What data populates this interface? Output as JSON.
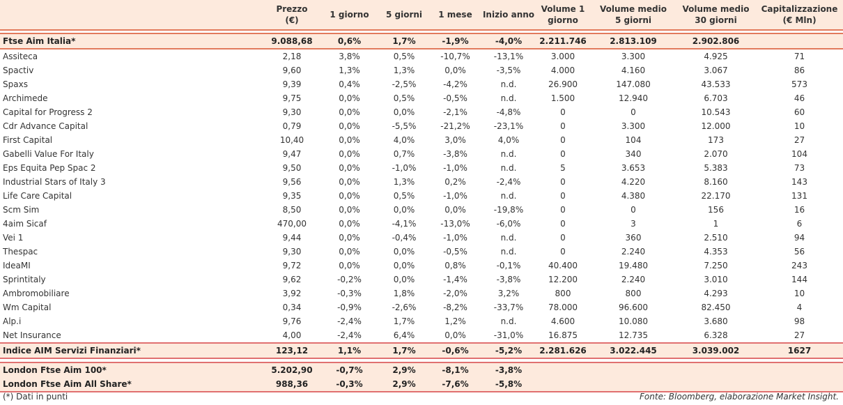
{
  "headers": [
    "",
    "Prezzo\n(€)",
    "1 giorno",
    "5 giorni",
    "1 mese",
    "Inizio anno",
    "Volume 1\ngiorno",
    "Volume medio\n5 giorni",
    "Volume medio\n30 giorni",
    "Capitalizzazione\n(€ Mln)"
  ],
  "index_row": [
    "Ftse Aim Italia*",
    "9.088,68",
    "0,6%",
    "1,7%",
    "-1,9%",
    "-4,0%",
    "2.211.746",
    "2.813.109",
    "2.902.806",
    ""
  ],
  "rows": [
    [
      "Assiteca",
      "2,18",
      "3,8%",
      "0,5%",
      "-10,7%",
      "-13,1%",
      "3.000",
      "3.300",
      "4.925",
      "71"
    ],
    [
      "Spactiv",
      "9,60",
      "1,3%",
      "1,3%",
      "0,0%",
      "-3,5%",
      "4.000",
      "4.160",
      "3.067",
      "86"
    ],
    [
      "Spaxs",
      "9,39",
      "0,4%",
      "-2,5%",
      "-4,2%",
      "n.d.",
      "26.900",
      "147.080",
      "43.533",
      "573"
    ],
    [
      "Archimede",
      "9,75",
      "0,0%",
      "0,5%",
      "-0,5%",
      "n.d.",
      "1.500",
      "12.940",
      "6.703",
      "46"
    ],
    [
      "Capital for Progress 2",
      "9,30",
      "0,0%",
      "0,0%",
      "-2,1%",
      "-4,8%",
      "0",
      "0",
      "10.543",
      "60"
    ],
    [
      "Cdr Advance Capital",
      "0,79",
      "0,0%",
      "-5,5%",
      "-21,2%",
      "-23,1%",
      "0",
      "3.300",
      "12.000",
      "10"
    ],
    [
      "First Capital",
      "10,40",
      "0,0%",
      "4,0%",
      "3,0%",
      "4,0%",
      "0",
      "104",
      "173",
      "27"
    ],
    [
      "Gabelli Value For Italy",
      "9,47",
      "0,0%",
      "0,7%",
      "-3,8%",
      "n.d.",
      "0",
      "340",
      "2.070",
      "104"
    ],
    [
      "Eps Equita Pep Spac 2",
      "9,50",
      "0,0%",
      "-1,0%",
      "-1,0%",
      "n.d.",
      "5",
      "3.653",
      "5.383",
      "73"
    ],
    [
      "Industrial Stars of Italy 3",
      "9,56",
      "0,0%",
      "1,3%",
      "0,2%",
      "-2,4%",
      "0",
      "4.220",
      "8.160",
      "143"
    ],
    [
      "Life Care Capital",
      "9,35",
      "0,0%",
      "0,5%",
      "-1,0%",
      "n.d.",
      "0",
      "4.380",
      "22.170",
      "131"
    ],
    [
      "Scm Sim",
      "8,50",
      "0,0%",
      "0,0%",
      "0,0%",
      "-19,8%",
      "0",
      "0",
      "156",
      "16"
    ],
    [
      "4aim Sicaf",
      "470,00",
      "0,0%",
      "-4,1%",
      "-13,0%",
      "-6,0%",
      "0",
      "3",
      "1",
      "6"
    ],
    [
      "Vei 1",
      "9,44",
      "0,0%",
      "-0,4%",
      "-1,0%",
      "n.d.",
      "0",
      "360",
      "2.510",
      "94"
    ],
    [
      "Thespac",
      "9,30",
      "0,0%",
      "0,0%",
      "-0,5%",
      "n.d.",
      "0",
      "2.240",
      "4.353",
      "56"
    ],
    [
      "IdeaMI",
      "9,72",
      "0,0%",
      "0,0%",
      "0,8%",
      "-0,1%",
      "40.400",
      "19.480",
      "7.250",
      "243"
    ],
    [
      "Sprintitaly",
      "9,62",
      "-0,2%",
      "0,0%",
      "-1,4%",
      "-3,8%",
      "12.200",
      "2.240",
      "3.010",
      "144"
    ],
    [
      "Ambromobiliare",
      "3,92",
      "-0,3%",
      "1,8%",
      "-2,0%",
      "3,2%",
      "800",
      "800",
      "4.293",
      "10"
    ],
    [
      "Wm Capital",
      "0,34",
      "-0,9%",
      "-2,6%",
      "-8,2%",
      "-33,7%",
      "78.000",
      "96.600",
      "82.450",
      "4"
    ],
    [
      "Alp.i",
      "9,76",
      "-2,4%",
      "1,7%",
      "1,2%",
      "n.d.",
      "4.600",
      "10.080",
      "3.680",
      "98"
    ],
    [
      "Net Insurance",
      "4,00",
      "-2,4%",
      "6,4%",
      "0,0%",
      "-31,0%",
      "16.875",
      "12.735",
      "6.328",
      "27"
    ]
  ],
  "total_row": [
    "Indice AIM Servizi Finanziari*",
    "123,12",
    "1,1%",
    "1,7%",
    "-0,6%",
    "-5,2%",
    "2.281.626",
    "3.022.445",
    "3.039.002",
    "1627"
  ],
  "london_rows": [
    [
      "London Ftse Aim 100*",
      "5.202,90",
      "-0,7%",
      "2,9%",
      "-8,1%",
      "-3,8%",
      "",
      "",
      "",
      ""
    ],
    [
      "London Ftse Aim All Share*",
      "988,36",
      "-0,3%",
      "2,9%",
      "-7,6%",
      "-5,8%",
      "",
      "",
      "",
      ""
    ]
  ],
  "footnote": "(*) Dati in punti",
  "source": "Fonte: Bloomberg, elaborazione Market Insight."
}
